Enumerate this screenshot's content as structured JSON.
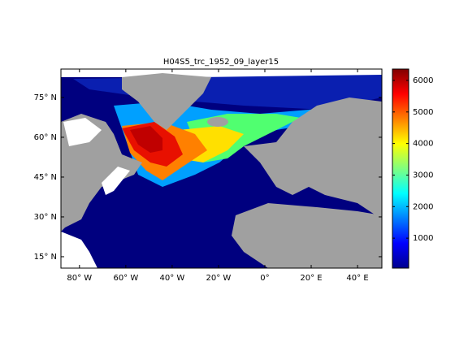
{
  "chart_data": {
    "type": "map",
    "title": "H04S5_trc_1952_09_layer15",
    "xlim": [
      -88,
      50.5
    ],
    "ylim": [
      10.7,
      85.7
    ],
    "xticks": [
      {
        "value": -80,
        "label": "80° W"
      },
      {
        "value": -60,
        "label": "60° W"
      },
      {
        "value": -40,
        "label": "40° W"
      },
      {
        "value": -20,
        "label": "20° W"
      },
      {
        "value": 0,
        "label": "0°"
      },
      {
        "value": 20,
        "label": "20° E"
      },
      {
        "value": 40,
        "label": "40° E"
      }
    ],
    "yticks": [
      {
        "value": 15,
        "label": "15° N"
      },
      {
        "value": 30,
        "label": "30° N"
      },
      {
        "value": 45,
        "label": "45° N"
      },
      {
        "value": 60,
        "label": "60° N"
      },
      {
        "value": 75,
        "label": "75° N"
      }
    ],
    "colorbar": {
      "clim": [
        50,
        6360
      ],
      "ticks": [
        1000,
        2000,
        3000,
        4000,
        5000,
        6000
      ]
    }
  }
}
